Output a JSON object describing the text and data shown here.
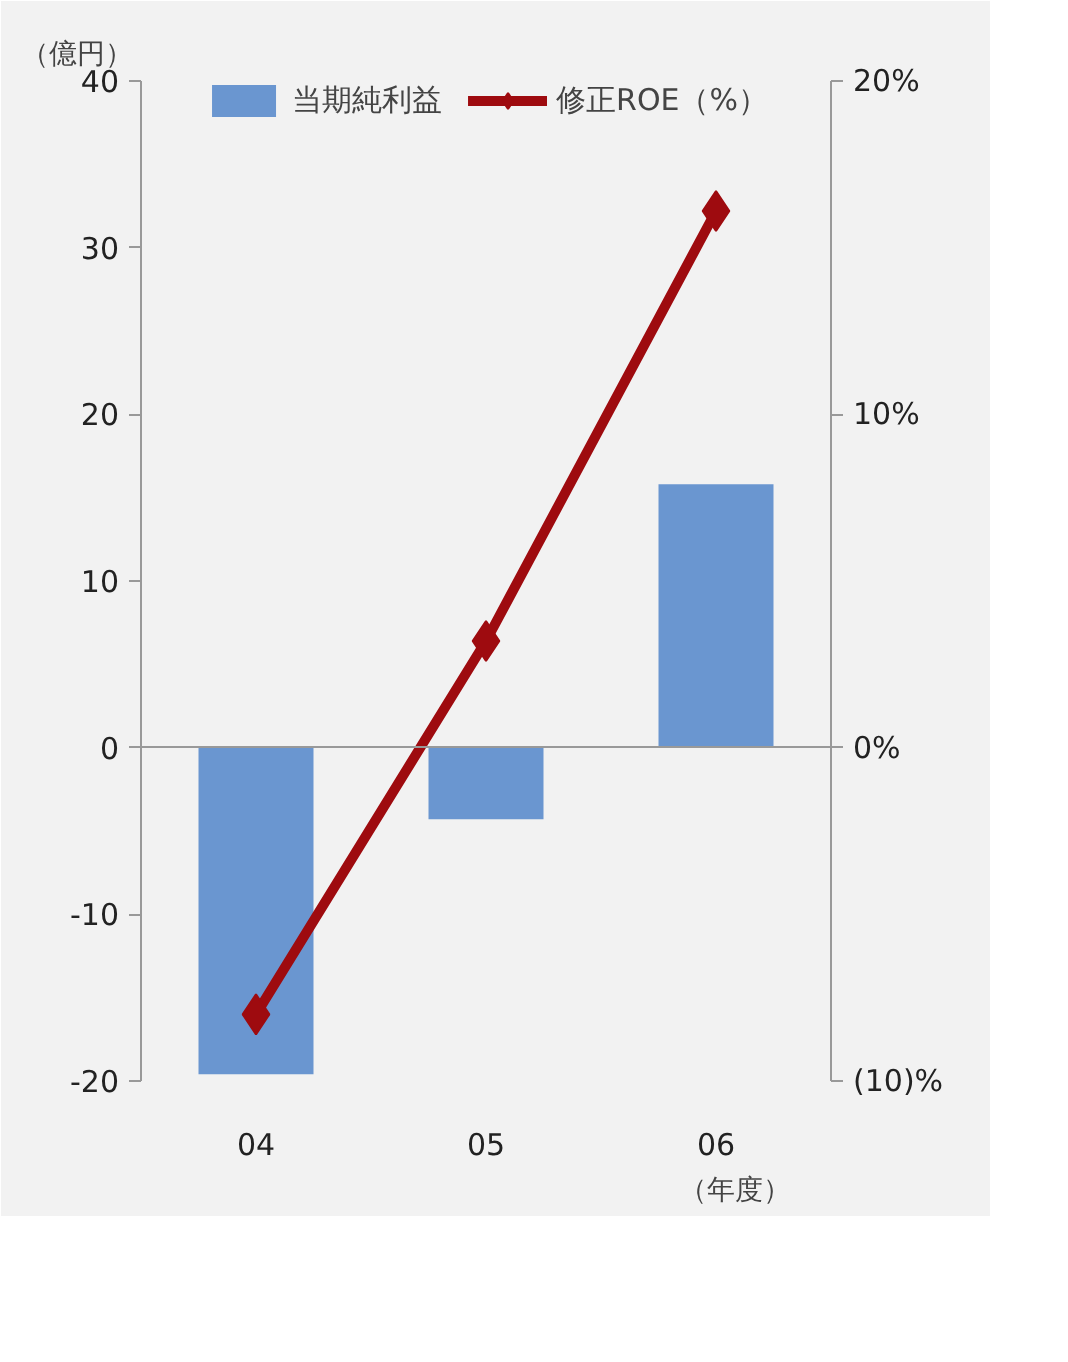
{
  "chart_data": {
    "type": "bar",
    "categories": [
      "04",
      "05",
      "06"
    ],
    "xlabel": "（年度）",
    "ylabel": "（億円）",
    "ylim": [
      -20,
      40
    ],
    "yticks": [
      -20,
      -10,
      0,
      10,
      20,
      30,
      40
    ],
    "y2lim": [
      -10,
      20
    ],
    "y2ticks": [
      {
        "value": -10,
        "label": "(10)%"
      },
      {
        "value": 0,
        "label": "0%"
      },
      {
        "value": 10,
        "label": "10%"
      },
      {
        "value": 20,
        "label": "20%"
      }
    ],
    "series": [
      {
        "name": "当期純利益",
        "color": "#6a96d0",
        "values": [
          -19.6,
          -4.3,
          15.8
        ]
      },
      {
        "name": "修正ROE（%）",
        "type": "line",
        "axis": "y2",
        "color": "#9e0b0f",
        "marker": "diamond",
        "values": [
          -8.0,
          3.2,
          16.1
        ]
      }
    ],
    "legend": "top"
  }
}
